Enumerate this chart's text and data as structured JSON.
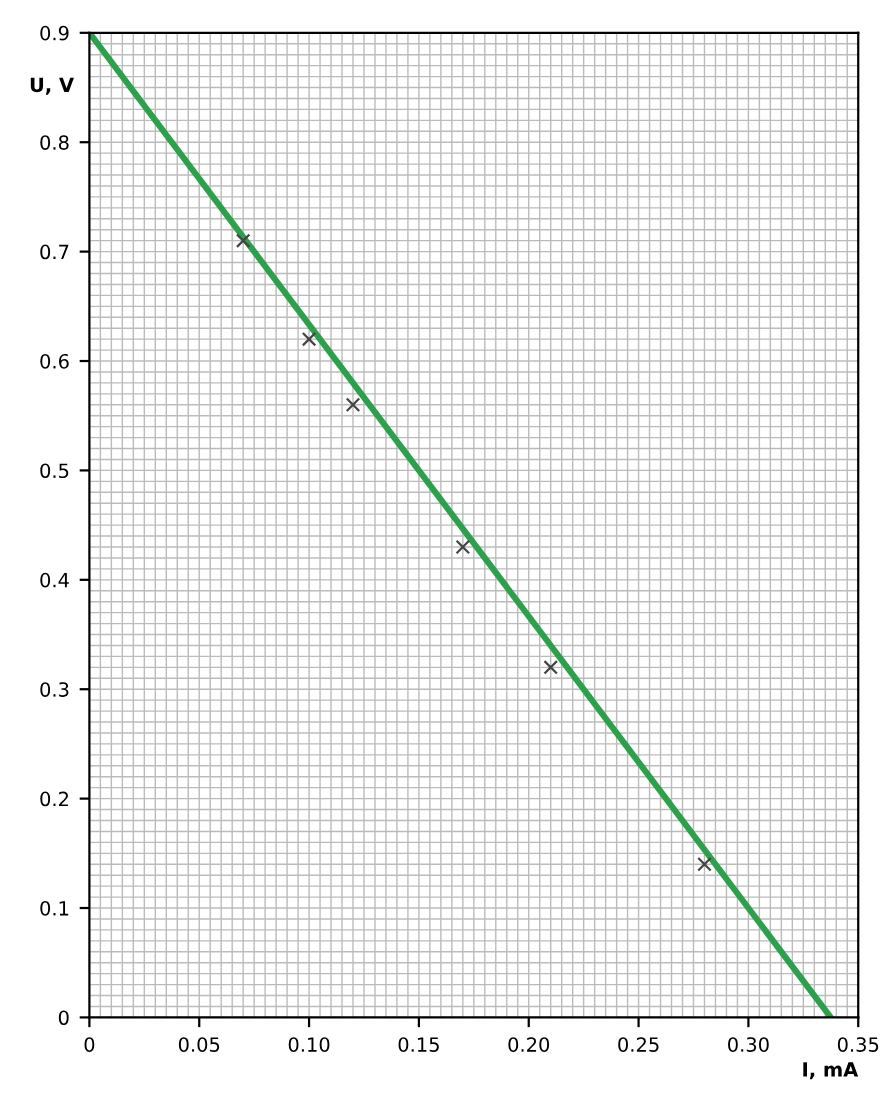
{
  "chart_data": {
    "type": "scatter",
    "xlabel": "I, mA",
    "ylabel": "U, V",
    "series": [
      {
        "color": "#444444",
        "marker": "cross",
        "x": [
          0.07,
          0.1,
          0.12,
          0.17,
          0.21,
          0.28
        ],
        "values": [
          0.71,
          0.62,
          0.56,
          0.43,
          0.32,
          0.14
        ]
      },
      {
        "type": "line",
        "color": "#2ca04a",
        "marker": "none",
        "x": [
          0,
          0.3375
        ],
        "values": [
          0.9,
          0
        ]
      }
    ],
    "xlim": [
      0,
      0.35
    ],
    "ylim": [
      0,
      0.9
    ],
    "xticks": [
      0,
      0.05,
      {
        "value": 0.1,
        "label": "0.10"
      },
      0.15,
      {
        "value": 0.2,
        "label": "0.20"
      },
      0.25,
      {
        "value": 0.3,
        "label": "0.30"
      },
      0.35
    ],
    "yticks": [
      0,
      0.1,
      0.2,
      0.3,
      0.4,
      0.5,
      0.6,
      0.7,
      0.8,
      0.9
    ],
    "grid": true,
    "legend": false
  }
}
